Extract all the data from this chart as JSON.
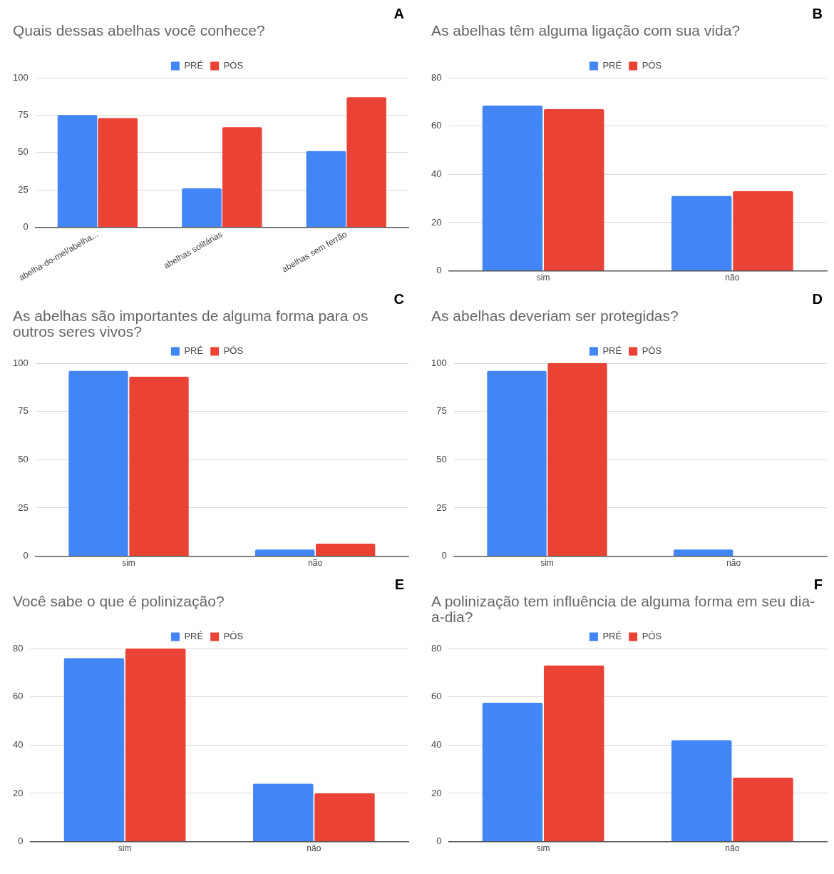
{
  "chart_data": [
    {
      "type": "bar",
      "title": "Quais dessas abelhas você conhece?",
      "annotations": [
        "A"
      ],
      "categories": [
        "abelha-do-mel/abelha...",
        "abelhas solitárias",
        "abelhas sem ferrão"
      ],
      "series": [
        {
          "name": "PRÉ",
          "color": "#4285f4",
          "values": [
            75,
            26,
            51
          ]
        },
        {
          "name": "PÓS",
          "color": "#ea4335",
          "values": [
            73,
            67,
            87
          ]
        }
      ],
      "ylim": [
        0,
        100
      ],
      "yticks": [
        0,
        25,
        50,
        75,
        100
      ],
      "grid": "y",
      "legend": "top"
    },
    {
      "type": "bar",
      "title": "As abelhas têm alguma ligação com sua vida?",
      "annotations": [
        "B"
      ],
      "categories": [
        "sim",
        "não"
      ],
      "series": [
        {
          "name": "PRÉ",
          "color": "#4285f4",
          "values": [
            68.5,
            31
          ]
        },
        {
          "name": "PÓS",
          "color": "#ea4335",
          "values": [
            67,
            33
          ]
        }
      ],
      "ylim": [
        0,
        80
      ],
      "yticks": [
        0,
        20,
        40,
        60,
        80
      ],
      "grid": "y",
      "legend": "top"
    },
    {
      "type": "bar",
      "title": "As abelhas são importantes de alguma forma para os outros seres vivos?",
      "annotations": [
        "C"
      ],
      "categories": [
        "sim",
        "não"
      ],
      "series": [
        {
          "name": "PRÉ",
          "color": "#4285f4",
          "values": [
            96,
            3.5
          ]
        },
        {
          "name": "PÓS",
          "color": "#ea4335",
          "values": [
            93,
            6.5
          ]
        }
      ],
      "ylim": [
        0,
        100
      ],
      "yticks": [
        0,
        25,
        50,
        75,
        100
      ],
      "grid": "y",
      "legend": "top"
    },
    {
      "type": "bar",
      "title": "As abelhas deveriam ser protegidas?",
      "annotations": [
        "D"
      ],
      "categories": [
        "sim",
        "não"
      ],
      "series": [
        {
          "name": "PRÉ",
          "color": "#4285f4",
          "values": [
            96,
            3.5
          ]
        },
        {
          "name": "PÓS",
          "color": "#ea4335",
          "values": [
            100,
            0
          ]
        }
      ],
      "ylim": [
        0,
        100
      ],
      "yticks": [
        0,
        25,
        50,
        75,
        100
      ],
      "grid": "y",
      "legend": "top"
    },
    {
      "type": "bar",
      "title": "Você sabe o que é polinização?",
      "annotations": [
        "E"
      ],
      "categories": [
        "sim",
        "não"
      ],
      "series": [
        {
          "name": "PRÉ",
          "color": "#4285f4",
          "values": [
            76,
            24
          ]
        },
        {
          "name": "PÓS",
          "color": "#ea4335",
          "values": [
            80,
            20
          ]
        }
      ],
      "ylim": [
        0,
        80
      ],
      "yticks": [
        0,
        20,
        40,
        60,
        80
      ],
      "grid": "y",
      "legend": "top"
    },
    {
      "type": "bar",
      "title": "A polinização tem influência de alguma forma em seu dia-a-dia?",
      "annotations": [
        "F"
      ],
      "categories": [
        "sim",
        "não"
      ],
      "series": [
        {
          "name": "PRÉ",
          "color": "#4285f4",
          "values": [
            57.5,
            42
          ]
        },
        {
          "name": "PÓS",
          "color": "#ea4335",
          "values": [
            73,
            26.5
          ]
        }
      ],
      "ylim": [
        0,
        80
      ],
      "yticks": [
        0,
        20,
        40,
        60,
        80
      ],
      "grid": "y",
      "legend": "top"
    }
  ]
}
